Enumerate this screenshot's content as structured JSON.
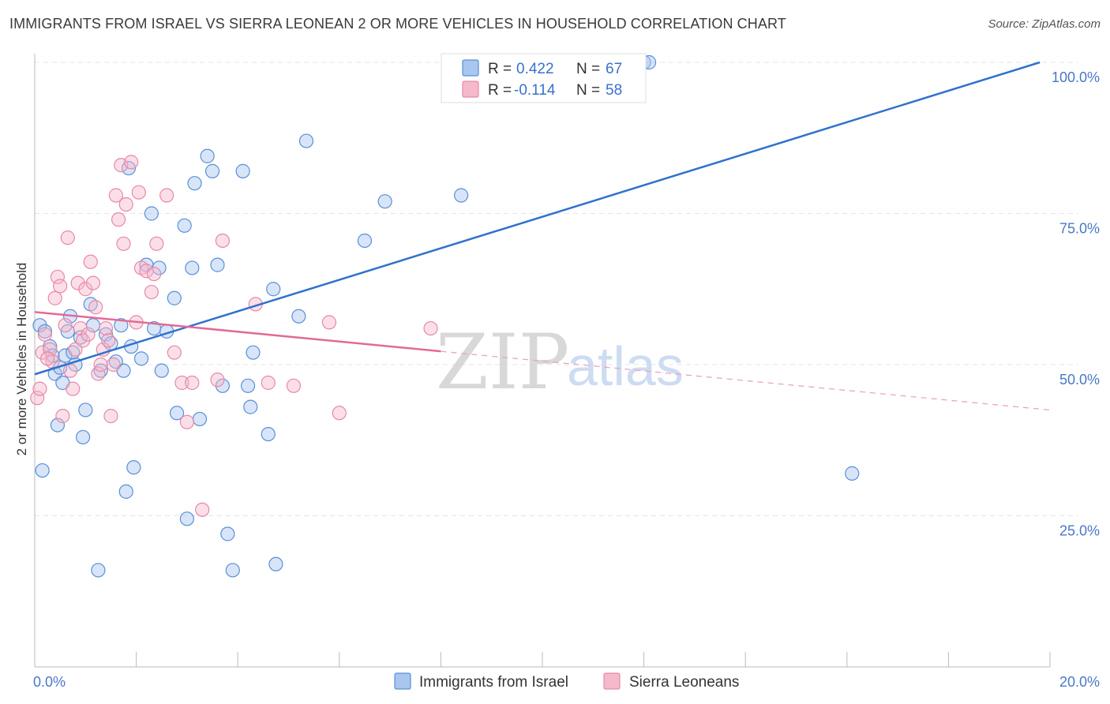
{
  "title": "IMMIGRANTS FROM ISRAEL VS SIERRA LEONEAN 2 OR MORE VEHICLES IN HOUSEHOLD CORRELATION CHART",
  "source": "Source: ZipAtlas.com",
  "watermark": {
    "zip": "ZIP",
    "atlas": "atlas"
  },
  "legend": {
    "r_label": "R =",
    "n_label": "N =",
    "entries": [
      {
        "r": "0.422",
        "n": "67",
        "color": "#a9c6ef",
        "stroke": "#5a8fd8"
      },
      {
        "r": "-0.114",
        "n": "58",
        "color": "#f6b9cc",
        "stroke": "#e888a8"
      }
    ]
  },
  "chart_data": {
    "type": "scatter",
    "title": "IMMIGRANTS FROM ISRAEL VS SIERRA LEONEAN 2 OR MORE VEHICLES IN HOUSEHOLD CORRELATION CHART",
    "xlabel": "",
    "ylabel": "2 or more Vehicles in Household",
    "xlim": [
      0,
      20
    ],
    "ylim": [
      0,
      100
    ],
    "x_tick_labels": [
      "0.0%",
      "20.0%"
    ],
    "y_tick_labels": [
      "100.0%",
      "75.0%",
      "50.0%",
      "25.0%"
    ],
    "y_ticks": [
      100,
      75,
      50,
      25
    ],
    "grid": true,
    "legend_position": "bottom",
    "series": [
      {
        "name": "Immigrants from Israel",
        "color": "#a9c6ef",
        "stroke": "#5a8fd8",
        "trend": {
          "x": [
            0,
            19.8
          ],
          "y": [
            48.4,
            100
          ]
        },
        "points": [
          [
            0.1,
            56.5
          ],
          [
            0.2,
            55.5
          ],
          [
            0.3,
            53.0
          ],
          [
            0.35,
            51.5
          ],
          [
            0.4,
            48.5
          ],
          [
            0.45,
            40.0
          ],
          [
            0.5,
            49.5
          ],
          [
            0.55,
            47.0
          ],
          [
            0.6,
            51.5
          ],
          [
            0.7,
            58.0
          ],
          [
            0.75,
            52.0
          ],
          [
            0.8,
            50.0
          ],
          [
            0.9,
            54.5
          ],
          [
            0.95,
            38.0
          ],
          [
            1.1,
            60.0
          ],
          [
            1.15,
            56.5
          ],
          [
            1.3,
            49.0
          ],
          [
            1.4,
            55.0
          ],
          [
            1.5,
            53.5
          ],
          [
            1.6,
            50.5
          ],
          [
            1.7,
            56.5
          ],
          [
            1.75,
            49.0
          ],
          [
            1.85,
            82.5
          ],
          [
            1.9,
            53.0
          ],
          [
            1.95,
            33.0
          ],
          [
            2.1,
            51.0
          ],
          [
            2.2,
            66.5
          ],
          [
            2.3,
            75.0
          ],
          [
            2.35,
            56.0
          ],
          [
            2.45,
            66.0
          ],
          [
            2.5,
            49.0
          ],
          [
            2.6,
            55.5
          ],
          [
            2.75,
            61.0
          ],
          [
            2.8,
            42.0
          ],
          [
            2.95,
            73.0
          ],
          [
            3.0,
            24.5
          ],
          [
            3.1,
            66.0
          ],
          [
            3.15,
            80.0
          ],
          [
            3.25,
            41.0
          ],
          [
            3.4,
            84.5
          ],
          [
            3.5,
            82.0
          ],
          [
            3.6,
            66.5
          ],
          [
            3.7,
            46.5
          ],
          [
            3.8,
            22.0
          ],
          [
            3.9,
            16.0
          ],
          [
            4.1,
            82.0
          ],
          [
            4.2,
            46.5
          ],
          [
            4.25,
            43.0
          ],
          [
            4.3,
            52.0
          ],
          [
            4.6,
            38.5
          ],
          [
            4.7,
            62.5
          ],
          [
            4.75,
            17.0
          ],
          [
            5.2,
            58.0
          ],
          [
            5.35,
            87.0
          ],
          [
            6.5,
            70.5
          ],
          [
            6.9,
            77.0
          ],
          [
            8.4,
            78.0
          ],
          [
            10.4,
            100.0
          ],
          [
            10.8,
            100.0
          ],
          [
            12.0,
            100.0
          ],
          [
            12.1,
            100.0
          ],
          [
            16.1,
            32.0
          ],
          [
            1.25,
            16.0
          ],
          [
            1.8,
            29.0
          ],
          [
            0.15,
            32.5
          ],
          [
            0.65,
            55.5
          ],
          [
            1.0,
            42.5
          ]
        ]
      },
      {
        "name": "Sierra Leoneans",
        "color": "#f6b9cc",
        "stroke": "#e888a8",
        "trend": {
          "x": [
            0,
            8
          ],
          "y": [
            58.7,
            52.2
          ]
        },
        "trend_dashed": {
          "x": [
            8,
            20
          ],
          "y": [
            52.2,
            42.5
          ]
        },
        "points": [
          [
            0.05,
            44.5
          ],
          [
            0.1,
            46.0
          ],
          [
            0.15,
            52.0
          ],
          [
            0.2,
            55.0
          ],
          [
            0.3,
            52.5
          ],
          [
            0.35,
            50.5
          ],
          [
            0.4,
            61.0
          ],
          [
            0.45,
            64.5
          ],
          [
            0.5,
            63.0
          ],
          [
            0.55,
            41.5
          ],
          [
            0.6,
            56.5
          ],
          [
            0.65,
            71.0
          ],
          [
            0.75,
            46.0
          ],
          [
            0.8,
            52.5
          ],
          [
            0.85,
            63.5
          ],
          [
            0.9,
            56.0
          ],
          [
            0.95,
            54.0
          ],
          [
            1.0,
            62.5
          ],
          [
            1.05,
            55.0
          ],
          [
            1.1,
            67.0
          ],
          [
            1.15,
            63.5
          ],
          [
            1.2,
            59.5
          ],
          [
            1.25,
            48.5
          ],
          [
            1.3,
            50.0
          ],
          [
            1.35,
            52.5
          ],
          [
            1.4,
            56.0
          ],
          [
            1.5,
            41.5
          ],
          [
            1.55,
            50.0
          ],
          [
            1.6,
            78.0
          ],
          [
            1.65,
            74.0
          ],
          [
            1.7,
            83.0
          ],
          [
            1.75,
            70.0
          ],
          [
            1.8,
            76.5
          ],
          [
            1.9,
            83.5
          ],
          [
            2.0,
            57.0
          ],
          [
            2.05,
            78.5
          ],
          [
            2.1,
            66.0
          ],
          [
            2.2,
            65.5
          ],
          [
            2.3,
            62.0
          ],
          [
            2.35,
            65.0
          ],
          [
            2.4,
            70.0
          ],
          [
            2.6,
            78.0
          ],
          [
            2.75,
            52.0
          ],
          [
            2.9,
            47.0
          ],
          [
            3.0,
            40.5
          ],
          [
            3.1,
            47.0
          ],
          [
            3.3,
            26.0
          ],
          [
            3.6,
            47.5
          ],
          [
            3.7,
            70.5
          ],
          [
            4.35,
            60.0
          ],
          [
            4.6,
            47.0
          ],
          [
            5.1,
            46.5
          ],
          [
            5.8,
            57.0
          ],
          [
            6.0,
            42.0
          ],
          [
            7.8,
            56.0
          ],
          [
            0.25,
            51.0
          ],
          [
            0.7,
            49.0
          ],
          [
            1.45,
            54.0
          ]
        ]
      }
    ]
  },
  "bottom_legend": [
    {
      "label": "Immigrants from Israel",
      "color": "#a9c6ef",
      "stroke": "#5a8fd8"
    },
    {
      "label": "Sierra Leoneans",
      "color": "#f6b9cc",
      "stroke": "#e888a8"
    }
  ]
}
